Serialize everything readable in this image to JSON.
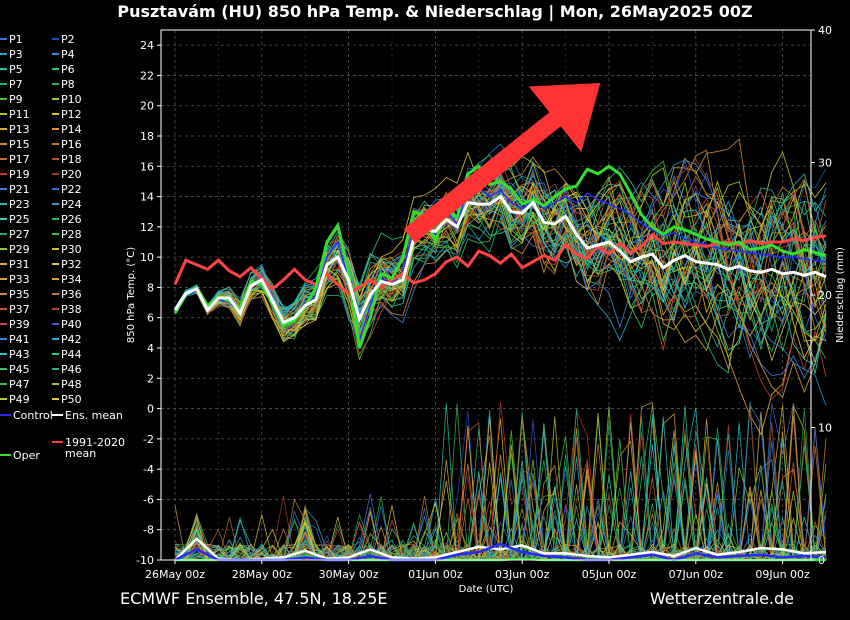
{
  "chart_data": {
    "type": "line",
    "title": "Pusztavám  (HU)  850 hPa Temp. & Niederschlag | Mon, 26May2025 00Z",
    "xlabel": "Date (UTC)",
    "ylabel": "850 hPa Temp. (°C)",
    "y2label": "Niederschlag (mm)",
    "ylim": [
      -10,
      25
    ],
    "y2lim": [
      0,
      40
    ],
    "yticks": [
      -10,
      -8,
      -6,
      -4,
      -2,
      0,
      2,
      4,
      6,
      8,
      10,
      12,
      14,
      16,
      18,
      20,
      22,
      24
    ],
    "y2ticks": [
      0,
      10,
      20,
      30,
      40
    ],
    "x_range_days": [
      0,
      15
    ],
    "xticks": [
      {
        "day": 0,
        "label": "26May 00z"
      },
      {
        "day": 2,
        "label": "28May 00z"
      },
      {
        "day": 4,
        "label": "30May 00z"
      },
      {
        "day": 6,
        "label": "01Jun 00z"
      },
      {
        "day": 8,
        "label": "03Jun 00z"
      },
      {
        "day": 10,
        "label": "05Jun 00z"
      },
      {
        "day": 12,
        "label": "07Jun 00z"
      },
      {
        "day": 14,
        "label": "09Jun 00z"
      }
    ],
    "grid": true,
    "legend_position": "left",
    "legend_members": [
      "P1",
      "P2",
      "P3",
      "P4",
      "P5",
      "P6",
      "P7",
      "P8",
      "P9",
      "P10",
      "P11",
      "P12",
      "P13",
      "P14",
      "P15",
      "P16",
      "P17",
      "P18",
      "P19",
      "P20",
      "P21",
      "P22",
      "P23",
      "P24",
      "P25",
      "P26",
      "P27",
      "P28",
      "P29",
      "P30",
      "P31",
      "P32",
      "P33",
      "P34",
      "P35",
      "P36",
      "P37",
      "P38",
      "P39",
      "P40",
      "P41",
      "P42",
      "P43",
      "P44",
      "P45",
      "P46",
      "P47",
      "P48",
      "P49",
      "P50"
    ],
    "legend_specials": [
      "Control",
      "Ens. mean",
      "Oper",
      "1991-2020 mean"
    ],
    "member_colors": [
      "#3a6fd8",
      "#1f4fbf",
      "#22a8c9",
      "#2e8bd6",
      "#1fc6a6",
      "#31c46b",
      "#17b38a",
      "#29a64a",
      "#4dc23d",
      "#8fd12a",
      "#b5c72a",
      "#d8c12a",
      "#d9a82e",
      "#e0922f",
      "#d88a3a",
      "#c97a2a",
      "#c96b2f",
      "#b3552a",
      "#c43d2a",
      "#9e3a2a",
      "#4a7bd8",
      "#2f6bd0",
      "#2fb0c0",
      "#2a94c9",
      "#2fd1b0",
      "#22b860",
      "#1faa7a",
      "#3dbb4a",
      "#8ac83a",
      "#c6c42a",
      "#d6b42a",
      "#d9c060",
      "#d8a23a",
      "#e0a030",
      "#c98a3a",
      "#b97a2a",
      "#c45a3a",
      "#b5442a",
      "#c94848",
      "#3a58d0",
      "#2f8ad8",
      "#2fa8e0",
      "#2ac0d0",
      "#2ad0a0",
      "#36c070",
      "#2ab08a",
      "#45c050",
      "#92cc30",
      "#bcc830",
      "#e0c83a"
    ],
    "series": [
      {
        "name": "Ens. mean",
        "color": "#ffffff",
        "x": [
          0,
          0.25,
          0.5,
          0.75,
          1,
          1.25,
          1.5,
          1.75,
          2,
          2.25,
          2.5,
          2.75,
          3,
          3.25,
          3.5,
          3.75,
          4,
          4.25,
          4.5,
          4.75,
          5,
          5.25,
          5.5,
          5.75,
          6,
          6.25,
          6.5,
          6.75,
          7,
          7.25,
          7.5,
          7.75,
          8,
          8.25,
          8.5,
          8.75,
          9,
          9.25,
          9.5,
          9.75,
          10,
          10.25,
          10.5,
          10.75,
          11,
          11.25,
          11.5,
          11.75,
          12,
          12.25,
          12.5,
          12.75,
          13,
          13.25,
          13.5,
          13.75,
          14,
          14.25,
          14.5,
          14.75,
          15
        ],
        "values": [
          6.5,
          7.6,
          7.9,
          6.5,
          7.3,
          7.3,
          6.3,
          8.1,
          8.5,
          7.1,
          5.7,
          6,
          6.8,
          7.2,
          9.5,
          10,
          8.5,
          5.9,
          7.5,
          8.4,
          8.2,
          8.5,
          11.2,
          11.8,
          11.7,
          12.5,
          12,
          13.6,
          13.5,
          13.5,
          14,
          13,
          12.9,
          13.6,
          12.3,
          12.2,
          12.7,
          11.5,
          10.6,
          10.8,
          11,
          10.4,
          9.7,
          10,
          10.2,
          9.3,
          9.8,
          10.1,
          9.7,
          9.6,
          9.5,
          9.2,
          9.4,
          9.1,
          9,
          9.2,
          8.9,
          9,
          8.8,
          9,
          8.7
        ]
      },
      {
        "name": "Oper",
        "color": "#33dd33",
        "x": [
          0,
          0.25,
          0.5,
          0.75,
          1,
          1.25,
          1.5,
          1.75,
          2,
          2.25,
          2.5,
          2.75,
          3,
          3.25,
          3.5,
          3.75,
          4,
          4.25,
          4.5,
          4.75,
          5,
          5.25,
          5.5,
          5.75,
          6,
          6.25,
          6.5,
          6.75,
          7,
          7.25,
          7.5,
          7.75,
          8,
          8.25,
          8.5,
          8.75,
          9,
          9.25,
          9.5,
          9.75,
          10,
          10.25,
          10.5,
          10.75,
          11,
          11.25,
          11.5,
          11.75,
          12,
          12.25,
          12.5,
          12.75,
          13,
          13.25,
          13.5,
          13.75,
          14,
          14.25,
          14.5,
          14.75,
          15
        ],
        "values": [
          6.3,
          7.5,
          8,
          6.8,
          7.4,
          7.1,
          6.6,
          8.4,
          8.2,
          6.9,
          5.5,
          5.8,
          6.7,
          8,
          11,
          12.1,
          9,
          4,
          6,
          8.9,
          8.6,
          10,
          13,
          12.8,
          11,
          13.2,
          12.6,
          15.5,
          16,
          14.8,
          15,
          14.5,
          13.5,
          13.8,
          13.4,
          14,
          14.5,
          14.7,
          15.8,
          15.5,
          16,
          15.5,
          14.2,
          12.8,
          12,
          11.5,
          12,
          11.8,
          11.5,
          11.2,
          11,
          10.8,
          11,
          10.5,
          10.6,
          10.8,
          10.4,
          10.2,
          10.5,
          10.3,
          10.1
        ]
      },
      {
        "name": "1991-2020 mean",
        "color": "#ff4444",
        "x": [
          0,
          0.25,
          0.5,
          0.75,
          1,
          1.25,
          1.5,
          1.75,
          2,
          2.25,
          2.5,
          2.75,
          3,
          3.25,
          3.5,
          3.75,
          4,
          4.25,
          4.5,
          4.75,
          5,
          5.25,
          5.5,
          5.75,
          6,
          6.25,
          6.5,
          6.75,
          7,
          7.25,
          7.5,
          7.75,
          8,
          8.25,
          8.5,
          8.75,
          9,
          9.25,
          9.5,
          9.75,
          10,
          10.25,
          10.5,
          10.75,
          11,
          11.25,
          11.5,
          11.75,
          12,
          12.25,
          12.5,
          12.75,
          13,
          13.25,
          13.5,
          13.75,
          14,
          14.25,
          14.5,
          14.75,
          15
        ],
        "values": [
          8.2,
          9.8,
          9.5,
          9.2,
          9.8,
          9.1,
          8.7,
          9.3,
          8.6,
          7.9,
          8.5,
          9.2,
          8.5,
          8.2,
          8.9,
          8.2,
          7.6,
          8,
          8.5,
          8,
          8.5,
          8.9,
          8.3,
          8.5,
          8.9,
          9.7,
          10,
          9.4,
          10.4,
          10.1,
          9.6,
          10.2,
          9.3,
          9.7,
          10.1,
          9.8,
          10.8,
          10.2,
          9.9,
          10.7,
          10.2,
          10.9,
          10.3,
          10.7,
          11.5,
          10.9,
          11,
          10.9,
          10.8,
          10.7,
          10.9,
          11,
          10.8,
          11.1,
          10.9,
          11,
          11,
          11.2,
          11.1,
          11.3,
          11.4
        ]
      },
      {
        "name": "Control",
        "color": "#2a2aff",
        "x": [
          0,
          0.25,
          0.5,
          0.75,
          1,
          1.25,
          1.5,
          1.75,
          2,
          2.25,
          2.5,
          2.75,
          3,
          3.25,
          3.5,
          3.75,
          4,
          4.25,
          4.5,
          4.75,
          5,
          5.25,
          5.5,
          5.75,
          6,
          6.25,
          6.5,
          6.75,
          7,
          7.25,
          7.5,
          7.75,
          8,
          8.25,
          8.5,
          8.75,
          9,
          9.25,
          9.5,
          9.75,
          10,
          10.25,
          10.5,
          10.75,
          11,
          11.25,
          11.5,
          11.75,
          12,
          12.25,
          12.5,
          12.75,
          13,
          13.25,
          13.5,
          13.75,
          14,
          14.25,
          14.5,
          14.75,
          15
        ],
        "values": [
          6.4,
          7.4,
          7.8,
          6.6,
          7.2,
          7,
          6.4,
          8.2,
          8.3,
          7,
          5.6,
          5.9,
          6.6,
          7.5,
          10,
          11,
          8.5,
          4.5,
          6.8,
          8.6,
          8.3,
          9,
          12,
          12.5,
          11.5,
          13,
          12.2,
          14.5,
          14.6,
          14,
          14.4,
          13.6,
          13.2,
          13.8,
          13.2,
          13.6,
          14,
          13.6,
          14.2,
          13.8,
          13.5,
          13.2,
          12.8,
          12.2,
          11.8,
          11.4,
          11.6,
          11.2,
          11,
          10.8,
          10.6,
          10.5,
          10.4,
          10.3,
          10.2,
          10.1,
          10,
          10,
          9.9,
          9.8,
          9.7
        ]
      }
    ],
    "precipitation": {
      "unit": "mm",
      "axis": "right",
      "series": [
        {
          "name": "Ens. mean",
          "x": [
            0,
            0.5,
            1,
            1.5,
            2,
            2.5,
            3,
            3.5,
            4,
            4.5,
            5,
            5.5,
            6,
            6.5,
            7,
            7.5,
            8,
            8.5,
            9,
            9.5,
            10,
            10.5,
            11,
            11.5,
            12,
            12.5,
            13,
            13.5,
            14,
            14.5,
            15
          ],
          "values": [
            0,
            1.6,
            0.1,
            0,
            0.1,
            0.2,
            0.7,
            0.1,
            0.2,
            0.8,
            0.2,
            0.1,
            0.2,
            0.6,
            1,
            0.8,
            1.1,
            0.5,
            0.5,
            0.3,
            0.2,
            0.4,
            0.6,
            0.3,
            0.9,
            0.4,
            0.6,
            0.9,
            0.8,
            0.5,
            0.6
          ]
        },
        {
          "name": "Oper",
          "x": [
            0,
            0.5,
            1,
            1.5,
            2,
            2.5,
            3,
            3.5,
            4,
            4.5,
            5,
            5.5,
            6,
            6.5,
            7,
            7.5,
            8,
            8.5,
            9,
            9.5,
            10,
            10.5,
            11,
            11.5,
            12,
            12.5,
            13,
            13.5,
            14,
            14.5,
            15
          ],
          "values": [
            0,
            0,
            0,
            0,
            0,
            0,
            0.3,
            0,
            0,
            0,
            0,
            0,
            0,
            0,
            0,
            0,
            0.1,
            0,
            0,
            0,
            0,
            0,
            0,
            0,
            0,
            0,
            0,
            0,
            0,
            0,
            0
          ]
        },
        {
          "name": "Control",
          "x": [
            0,
            0.5,
            1,
            1.5,
            2,
            2.5,
            3,
            3.5,
            4,
            4.5,
            5,
            5.5,
            6,
            6.5,
            7,
            7.5,
            8,
            8.5,
            9,
            9.5,
            10,
            10.5,
            11,
            11.5,
            12,
            12.5,
            13,
            13.5,
            14,
            14.5,
            15
          ],
          "values": [
            0,
            0.8,
            0,
            0,
            0,
            0,
            0.2,
            0,
            0,
            0.3,
            0,
            0,
            0,
            0.4,
            0.6,
            1.2,
            0.6,
            0.3,
            0.2,
            0,
            0,
            0.2,
            0.4,
            0,
            0.5,
            0.2,
            0.3,
            0.4,
            0.2,
            0.3,
            0.2
          ]
        }
      ]
    }
  },
  "footer": {
    "left": "ECMWF Ensemble, 47.5N, 18.25E",
    "right": "Wetterzentrale.de"
  },
  "annotation": {
    "type": "arrow",
    "color": "#ff3333",
    "from": {
      "day": 5.4,
      "temp": 11.4
    },
    "to": {
      "day": 9.8,
      "temp": 21.5
    }
  }
}
